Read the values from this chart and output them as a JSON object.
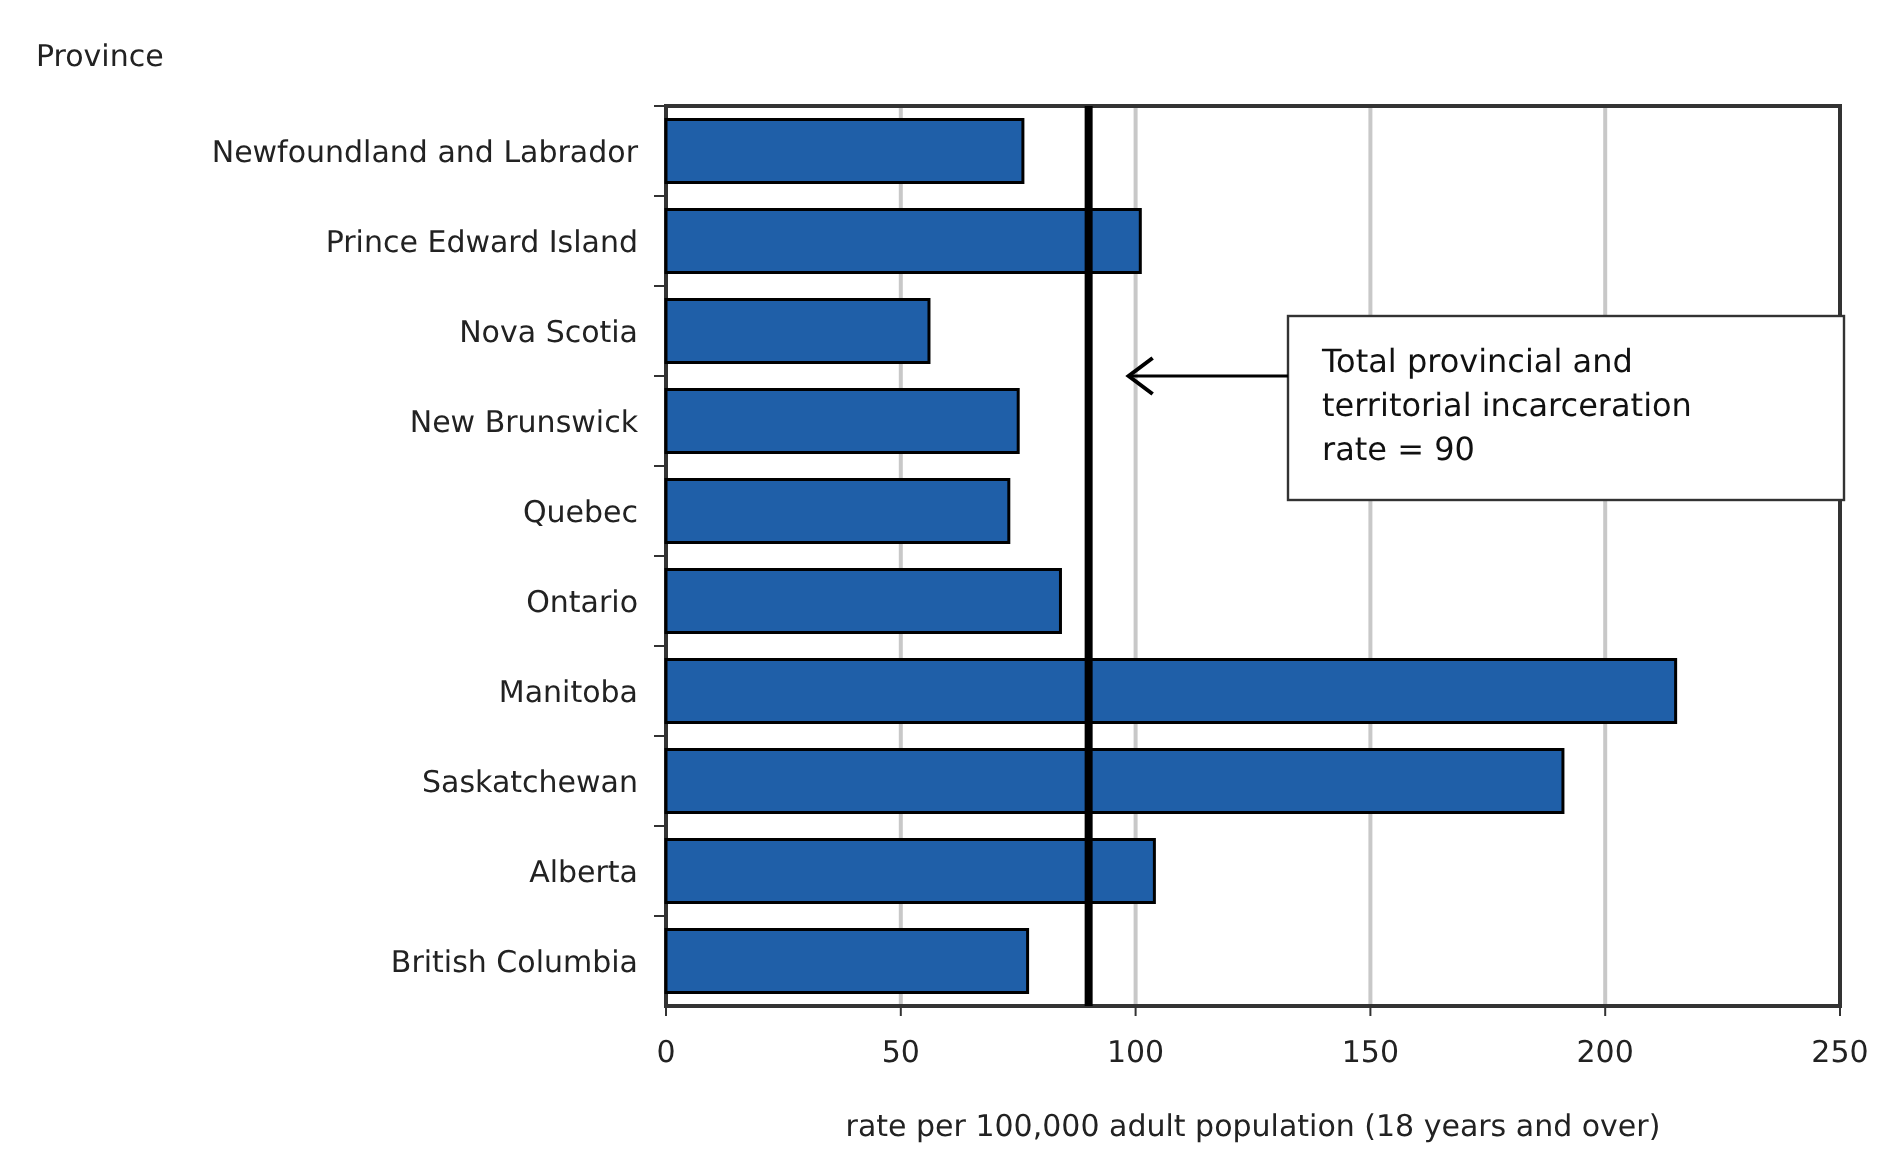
{
  "chart_data": {
    "type": "bar",
    "orientation": "horizontal",
    "ylabel": "Province",
    "xlabel": "rate per 100,000 adult population (18 years and over)",
    "categories": [
      "Newfoundland and Labrador",
      "Prince Edward Island",
      "Nova Scotia",
      "New Brunswick",
      "Quebec",
      "Ontario",
      "Manitoba",
      "Saskatchewan",
      "Alberta",
      "British Columbia"
    ],
    "values": [
      76,
      101,
      56,
      75,
      73,
      84,
      215,
      191,
      104,
      77
    ],
    "color": "#1f5fa8",
    "xlim": [
      0,
      250
    ],
    "xticks": [
      0,
      50,
      100,
      150,
      200,
      250
    ],
    "grid": "x",
    "ref_lines": [
      {
        "axis": "x",
        "value": 90,
        "label": "Total provincial and territorial incarceration rate = 90",
        "color": "#000000"
      }
    ]
  }
}
